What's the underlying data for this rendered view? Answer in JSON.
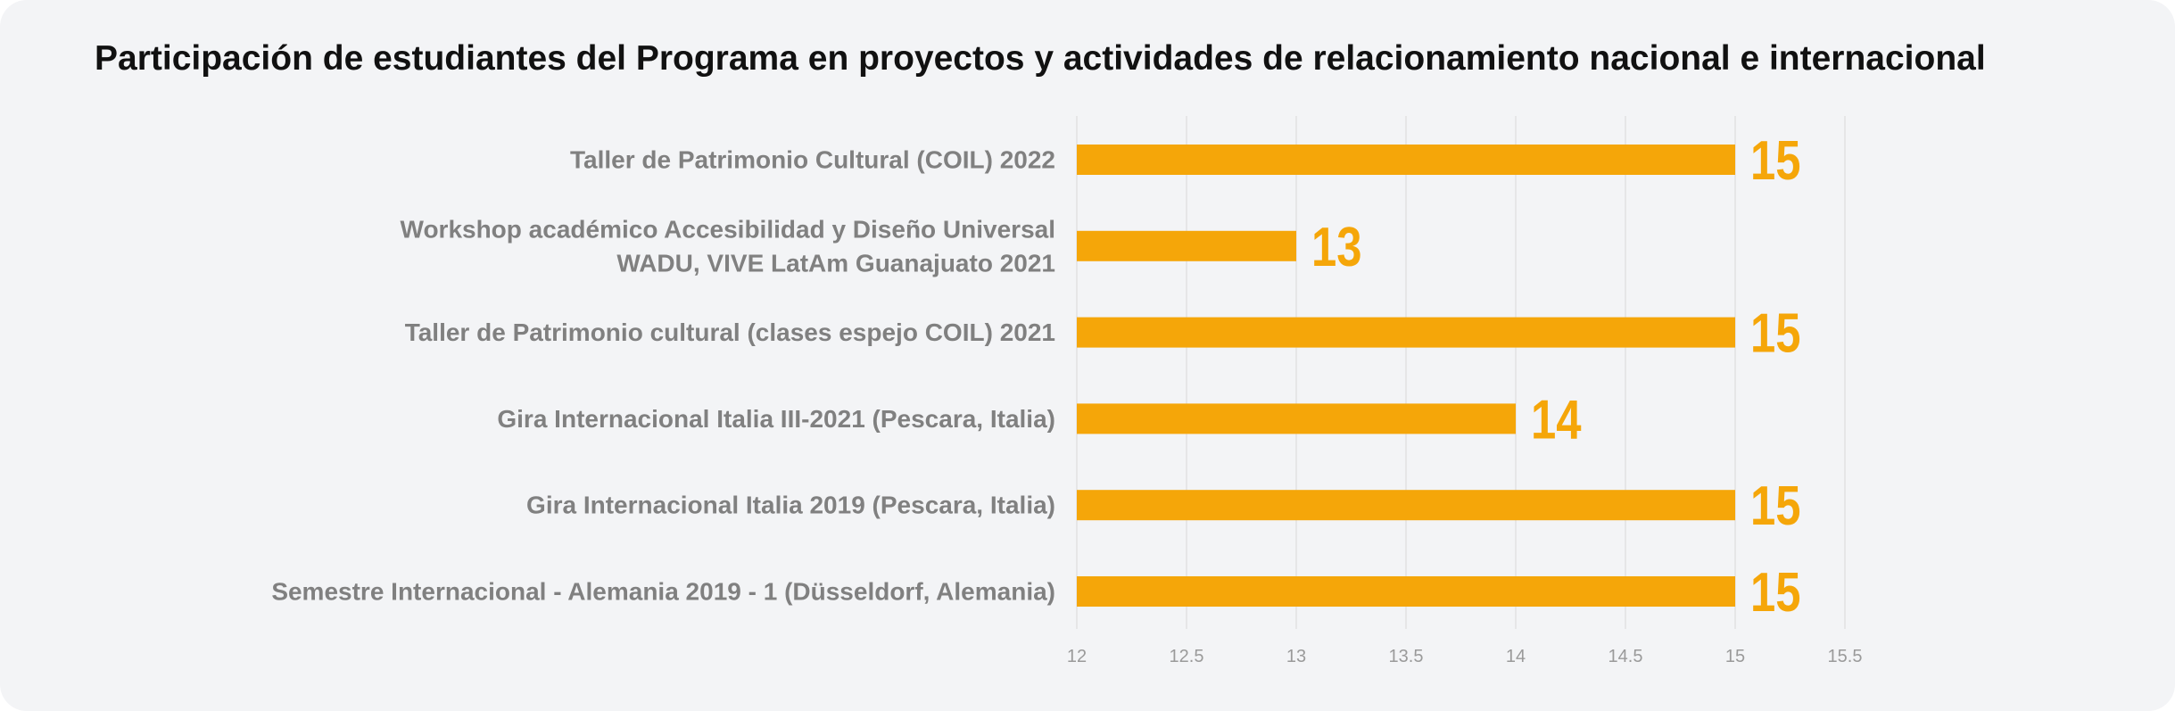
{
  "chart_data": {
    "type": "bar",
    "orientation": "horizontal",
    "title": "Participación de estudiantes del Programa en proyectos y actividades de relacionamiento nacional e internacional",
    "categories": [
      [
        "Taller de Patrimonio Cultural (COIL) 2022"
      ],
      [
        "Workshop académico Accesibilidad y Diseño Universal",
        "WADU, VIVE LatAm Guanajuato 2021"
      ],
      [
        "Taller de Patrimonio cultural (clases espejo COIL) 2021"
      ],
      [
        "Gira Internacional Italia III-2021 (Pescara, Italia)"
      ],
      [
        "Gira Internacional Italia 2019 (Pescara, Italia)"
      ],
      [
        "Semestre Internacional - Alemania 2019 - 1 (Düsseldorf, Alemania)"
      ]
    ],
    "values": [
      15,
      13,
      15,
      14,
      15,
      15
    ],
    "value_labels": [
      "15",
      "13",
      "15",
      "14",
      "15",
      "15"
    ],
    "xlim": [
      12,
      15.5
    ],
    "xticks": [
      12,
      12.5,
      13,
      13.5,
      14,
      14.5,
      15,
      15.5
    ],
    "xtick_labels": [
      "12",
      "12.5",
      "13",
      "13.5",
      "14",
      "14.5",
      "15",
      "15.5"
    ],
    "xlabel": "",
    "ylabel": "",
    "grid": true,
    "legend": "none",
    "bar_color": "#f5a609"
  }
}
